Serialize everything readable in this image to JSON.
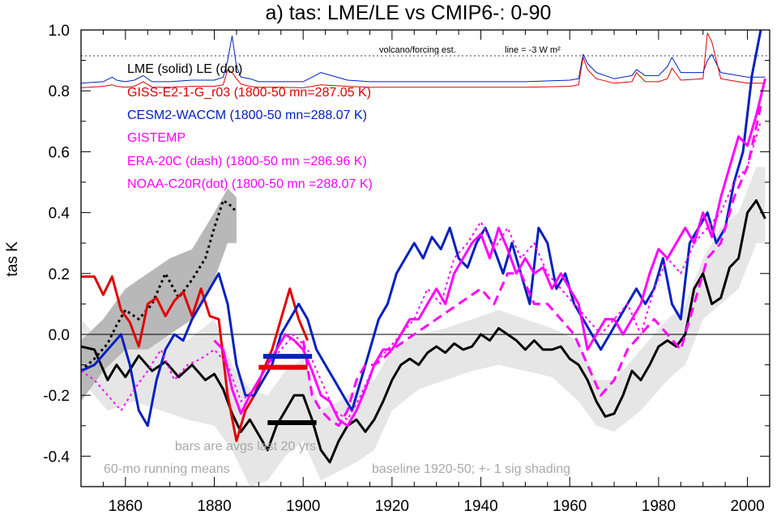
{
  "chart_data": {
    "type": "line",
    "title": "a) tas: LME/LE vs CMIP6-: 0-90",
    "ylabel": "tas K",
    "xlabel": "",
    "xlim": [
      1850,
      2005
    ],
    "ylim": [
      -0.5,
      1.0
    ],
    "x_ticks": [
      1860,
      1880,
      1900,
      1920,
      1940,
      1960,
      1980,
      2000
    ],
    "x_tick_labels": [
      "1860",
      "1880",
      "1900",
      "1920",
      "1940",
      "1960",
      "1980",
      "2000"
    ],
    "y_ticks": [
      -0.4,
      -0.2,
      0.0,
      0.2,
      0.4,
      0.6,
      0.8,
      1.0
    ],
    "y_tick_labels": [
      "-0.4",
      "-0.2",
      "0.0",
      "0.2",
      "0.4",
      "0.6",
      "0.8",
      "1.0"
    ],
    "legend": [
      {
        "text": "LME (solid)   LE (dot)",
        "color": "#000000"
      },
      {
        "text": "GISS-E2-1-G_r03 (1800-50 mn=287.05 K)",
        "color": "#e00000"
      },
      {
        "text": "CESM2-WACCM (1800-50 mn=288.07 K)",
        "color": "#0020c0"
      },
      {
        "text": "GISTEMP",
        "color": "#ff00ff"
      },
      {
        "text": "ERA-20C (dash) (1800-50 mn =286.96 K)",
        "color": "#ff00ff"
      },
      {
        "text": "NOAA-C20R(dot) (1800-50 mn =288.07 K)",
        "color": "#ff00ff"
      }
    ],
    "annotations": {
      "volcano_label": "volcano/forcing est.",
      "forcing_line_label": "line = -3 W m²",
      "bars_note": "bars are avgs last 20 yrs",
      "running_means": "60-mo running means",
      "baseline_note": "baseline 1920-50; +- 1 sig shading"
    },
    "forcing_reference_y": 0.915,
    "series": [
      {
        "name": "LME",
        "color": "#000000",
        "style": "solid",
        "width": 3,
        "x": [
          1850,
          1853,
          1856,
          1858,
          1860,
          1863,
          1866,
          1869,
          1872,
          1875,
          1878,
          1880,
          1882,
          1884,
          1886,
          1888,
          1890,
          1892,
          1894,
          1896,
          1898,
          1900,
          1902,
          1904,
          1906,
          1908,
          1910,
          1912,
          1914,
          1916,
          1918,
          1920,
          1922,
          1924,
          1926,
          1928,
          1930,
          1932,
          1934,
          1936,
          1938,
          1940,
          1942,
          1944,
          1946,
          1948,
          1950,
          1952,
          1954,
          1956,
          1958,
          1960,
          1962,
          1964,
          1966,
          1968,
          1970,
          1972,
          1974,
          1976,
          1978,
          1980,
          1982,
          1984,
          1986,
          1988,
          1990,
          1992,
          1994,
          1996,
          1998,
          2000,
          2002,
          2004
        ],
        "y": [
          -0.04,
          -0.05,
          -0.15,
          -0.1,
          -0.14,
          -0.07,
          -0.12,
          -0.09,
          -0.14,
          -0.1,
          -0.15,
          -0.13,
          -0.18,
          -0.26,
          -0.32,
          -0.28,
          -0.33,
          -0.38,
          -0.3,
          -0.25,
          -0.2,
          -0.2,
          -0.28,
          -0.38,
          -0.42,
          -0.35,
          -0.3,
          -0.28,
          -0.32,
          -0.28,
          -0.22,
          -0.15,
          -0.1,
          -0.08,
          -0.1,
          -0.06,
          -0.04,
          -0.06,
          -0.03,
          -0.05,
          -0.04,
          0.0,
          -0.02,
          0.02,
          0.0,
          -0.02,
          -0.05,
          -0.02,
          -0.05,
          -0.05,
          -0.04,
          -0.08,
          -0.1,
          -0.15,
          -0.22,
          -0.27,
          -0.26,
          -0.2,
          -0.12,
          -0.15,
          -0.1,
          -0.04,
          -0.02,
          -0.04,
          0.0,
          0.15,
          0.2,
          0.1,
          0.12,
          0.22,
          0.25,
          0.4,
          0.44,
          0.38
        ]
      },
      {
        "name": "LE",
        "color": "#000000",
        "style": "dot",
        "width": 3,
        "x": [
          1850,
          1853,
          1856,
          1858,
          1860,
          1863,
          1866,
          1869,
          1872,
          1875,
          1878,
          1880,
          1882,
          1884,
          1885
        ],
        "y": [
          -0.12,
          -0.08,
          -0.03,
          0.03,
          0.08,
          0.05,
          0.1,
          0.2,
          0.12,
          0.18,
          0.25,
          0.35,
          0.44,
          0.42,
          0.4
        ]
      },
      {
        "name": "GISS-E2-1-G_r03",
        "color": "#e00000",
        "style": "solid",
        "width": 3,
        "x": [
          1850,
          1853,
          1855,
          1857,
          1859,
          1861,
          1863,
          1865,
          1867,
          1869,
          1871,
          1873,
          1875,
          1877,
          1879,
          1881,
          1883,
          1885,
          1887,
          1889,
          1891,
          1893,
          1895,
          1897,
          1899,
          1901
        ],
        "y": [
          0.19,
          0.19,
          0.13,
          0.19,
          0.08,
          0.04,
          -0.04,
          0.1,
          0.12,
          0.06,
          0.11,
          0.14,
          0.06,
          0.15,
          0.06,
          0.05,
          -0.2,
          -0.35,
          -0.25,
          -0.2,
          -0.12,
          -0.05,
          0.05,
          0.15,
          0.05,
          -0.02
        ]
      },
      {
        "name": "CESM2-WACCM",
        "color": "#0020c0",
        "style": "solid",
        "width": 3,
        "x": [
          1850,
          1853,
          1856,
          1859,
          1861,
          1863,
          1865,
          1867,
          1869,
          1871,
          1873,
          1875,
          1877,
          1879,
          1881,
          1883,
          1885,
          1887,
          1889,
          1891,
          1893,
          1895,
          1897,
          1899,
          1901,
          1903,
          1905,
          1907,
          1909,
          1911,
          1913,
          1915,
          1917,
          1919,
          1921,
          1923,
          1925,
          1927,
          1929,
          1931,
          1933,
          1935,
          1937,
          1939,
          1941,
          1943,
          1945,
          1947,
          1949,
          1951,
          1953,
          1955,
          1957,
          1959,
          1961,
          1963,
          1965,
          1967,
          1969,
          1971,
          1973,
          1975,
          1977,
          1979,
          1981,
          1983,
          1985,
          1987,
          1989,
          1991,
          1993,
          1995,
          1997,
          1999,
          2001,
          2003
        ],
        "y": [
          -0.12,
          -0.1,
          -0.05,
          0.0,
          -0.1,
          -0.25,
          -0.3,
          -0.15,
          -0.05,
          0.0,
          -0.02,
          0.05,
          0.1,
          0.15,
          0.2,
          0.1,
          -0.1,
          -0.2,
          -0.2,
          -0.15,
          -0.1,
          0.0,
          0.05,
          0.1,
          0.05,
          -0.05,
          -0.1,
          -0.15,
          -0.2,
          -0.25,
          -0.15,
          -0.05,
          0.05,
          0.1,
          0.2,
          0.25,
          0.3,
          0.25,
          0.32,
          0.28,
          0.35,
          0.25,
          0.22,
          0.3,
          0.35,
          0.28,
          0.2,
          0.3,
          0.2,
          0.1,
          0.35,
          0.3,
          0.15,
          0.2,
          0.1,
          0.05,
          0.0,
          -0.05,
          0.0,
          0.05,
          0.1,
          0.15,
          0.1,
          0.15,
          0.25,
          0.1,
          0.05,
          0.3,
          0.35,
          0.4,
          0.3,
          0.35,
          0.5,
          0.6,
          0.85,
          1.0
        ]
      },
      {
        "name": "GISTEMP",
        "color": "#ff00ff",
        "style": "solid",
        "width": 3,
        "x": [
          1880,
          1882,
          1884,
          1886,
          1888,
          1890,
          1892,
          1894,
          1896,
          1898,
          1900,
          1902,
          1904,
          1906,
          1908,
          1910,
          1912,
          1914,
          1916,
          1918,
          1920,
          1922,
          1924,
          1926,
          1928,
          1930,
          1932,
          1934,
          1936,
          1938,
          1940,
          1942,
          1944,
          1946,
          1948,
          1950,
          1952,
          1954,
          1956,
          1958,
          1960,
          1962,
          1964,
          1966,
          1968,
          1970,
          1972,
          1974,
          1976,
          1978,
          1980,
          1982,
          1984,
          1986,
          1988,
          1990,
          1992,
          1994,
          1996,
          1998,
          2000,
          2002,
          2004
        ],
        "y": [
          -0.02,
          -0.05,
          -0.18,
          -0.26,
          -0.2,
          -0.15,
          -0.1,
          -0.05,
          0.0,
          -0.02,
          -0.05,
          -0.12,
          -0.2,
          -0.22,
          -0.28,
          -0.3,
          -0.25,
          -0.18,
          -0.1,
          -0.05,
          -0.05,
          0.0,
          0.05,
          0.05,
          0.1,
          0.15,
          0.1,
          0.2,
          0.25,
          0.3,
          0.33,
          0.25,
          0.35,
          0.28,
          0.2,
          0.25,
          0.2,
          0.22,
          0.15,
          0.2,
          0.15,
          0.1,
          -0.05,
          0.0,
          0.05,
          0.05,
          0.0,
          0.05,
          0.1,
          0.2,
          0.28,
          0.25,
          0.3,
          0.35,
          0.3,
          0.4,
          0.32,
          0.45,
          0.55,
          0.65,
          0.62,
          0.72,
          0.84
        ]
      },
      {
        "name": "ERA-20C",
        "color": "#ff00ff",
        "style": "dash",
        "width": 3,
        "x": [
          1900,
          1902,
          1904,
          1906,
          1908,
          1910,
          1912,
          1914,
          1916,
          1918,
          1920,
          1925,
          1930,
          1935,
          1940,
          1943,
          1946,
          1949,
          1952,
          1955,
          1958,
          1961,
          1964,
          1967,
          1970,
          1973,
          1976,
          1979,
          1982,
          1985,
          1988,
          1991,
          1994,
          1997,
          2000,
          2003
        ],
        "y": [
          -0.02,
          -0.2,
          -0.25,
          -0.28,
          -0.3,
          -0.25,
          -0.15,
          -0.1,
          -0.1,
          -0.08,
          -0.05,
          0.0,
          0.05,
          0.1,
          0.15,
          0.1,
          0.2,
          0.2,
          0.1,
          0.1,
          0.05,
          0.0,
          -0.1,
          -0.2,
          -0.15,
          -0.05,
          0.0,
          0.05,
          0.0,
          -0.05,
          0.1,
          0.25,
          0.3,
          0.45,
          0.55,
          0.75
        ]
      },
      {
        "name": "NOAA-C20R",
        "color": "#ff00ff",
        "style": "dot",
        "width": 2,
        "x": [
          1850,
          1853,
          1856,
          1859,
          1862,
          1865,
          1868,
          1871,
          1874,
          1877,
          1880,
          1883,
          1886,
          1889,
          1892,
          1895,
          1898,
          1901,
          1904,
          1907,
          1910,
          1913,
          1916,
          1919,
          1922,
          1925,
          1928,
          1931,
          1934,
          1937,
          1940,
          1943,
          1946,
          1949,
          1952,
          1955,
          1958,
          1961,
          1964,
          1967,
          1970,
          1973,
          1976,
          1979,
          1982,
          1985,
          1988,
          1991,
          1994,
          1997,
          2000,
          2003
        ],
        "y": [
          -0.12,
          -0.15,
          -0.2,
          -0.25,
          -0.18,
          -0.12,
          -0.05,
          -0.15,
          -0.1,
          -0.08,
          -0.05,
          -0.1,
          -0.22,
          -0.18,
          -0.1,
          -0.05,
          0.0,
          -0.05,
          -0.15,
          -0.25,
          -0.28,
          -0.2,
          -0.1,
          -0.05,
          0.0,
          0.05,
          0.15,
          0.1,
          0.25,
          0.3,
          0.37,
          0.28,
          0.35,
          0.25,
          0.3,
          0.2,
          0.15,
          0.1,
          0.05,
          0.0,
          0.05,
          0.1,
          0.0,
          0.15,
          0.25,
          0.2,
          0.3,
          0.35,
          0.4,
          0.5,
          0.55,
          0.7
        ]
      }
    ],
    "bands": [
      {
        "name": "LME spread",
        "color": "#e6e6e6",
        "x": [
          1850,
          1856,
          1862,
          1868,
          1874,
          1880,
          1884,
          1888,
          1892,
          1896,
          1900,
          1904,
          1908,
          1912,
          1916,
          1920,
          1926,
          1932,
          1938,
          1944,
          1950,
          1956,
          1962,
          1966,
          1970,
          1976,
          1982,
          1986,
          1990,
          1994,
          1998,
          2002,
          2004
        ],
        "lo": [
          -0.15,
          -0.25,
          -0.22,
          -0.25,
          -0.28,
          -0.3,
          -0.38,
          -0.5,
          -0.48,
          -0.4,
          -0.35,
          -0.48,
          -0.45,
          -0.42,
          -0.38,
          -0.25,
          -0.18,
          -0.15,
          -0.12,
          -0.1,
          -0.12,
          -0.14,
          -0.22,
          -0.3,
          -0.32,
          -0.25,
          -0.15,
          -0.1,
          0.05,
          0.1,
          0.15,
          0.3,
          0.3
        ],
        "hi": [
          0.05,
          -0.05,
          0.02,
          0.0,
          -0.02,
          0.05,
          -0.1,
          -0.18,
          -0.2,
          -0.12,
          -0.08,
          -0.25,
          -0.22,
          -0.18,
          -0.15,
          -0.05,
          0.0,
          0.02,
          0.05,
          0.08,
          0.05,
          0.02,
          -0.02,
          -0.15,
          -0.15,
          -0.05,
          0.05,
          0.1,
          0.25,
          0.35,
          0.4,
          0.55,
          0.55
        ]
      },
      {
        "name": "LE spread",
        "color": "#b8b8b8",
        "x": [
          1850,
          1855,
          1860,
          1865,
          1870,
          1875,
          1880,
          1883,
          1885
        ],
        "lo": [
          -0.22,
          -0.12,
          -0.05,
          -0.05,
          0.0,
          0.05,
          0.18,
          0.3,
          0.3
        ],
        "hi": [
          -0.02,
          0.05,
          0.15,
          0.2,
          0.25,
          0.28,
          0.4,
          0.48,
          0.45
        ]
      }
    ],
    "forcing_series": [
      {
        "name": "LME forcing",
        "color": "#0020c0",
        "x": [
          1850,
          1855,
          1857,
          1858,
          1860,
          1862,
          1864,
          1866,
          1870,
          1875,
          1880,
          1882,
          1883,
          1884,
          1885,
          1886,
          1888,
          1890,
          1895,
          1900,
          1902,
          1904,
          1910,
          1915,
          1920,
          1930,
          1940,
          1950,
          1960,
          1962,
          1963,
          1964,
          1966,
          1970,
          1974,
          1975,
          1977,
          1980,
          1982,
          1983,
          1985,
          1990,
          1991,
          1992,
          1994,
          2000,
          2004
        ],
        "y": [
          0.825,
          0.83,
          0.845,
          0.835,
          0.83,
          0.835,
          0.85,
          0.83,
          0.83,
          0.835,
          0.835,
          0.845,
          0.9,
          0.98,
          0.88,
          0.845,
          0.84,
          0.83,
          0.83,
          0.83,
          0.845,
          0.86,
          0.835,
          0.83,
          0.83,
          0.83,
          0.83,
          0.83,
          0.835,
          0.84,
          0.92,
          0.89,
          0.86,
          0.84,
          0.85,
          0.87,
          0.85,
          0.85,
          0.88,
          0.91,
          0.86,
          0.86,
          0.9,
          0.92,
          0.86,
          0.845,
          0.845
        ]
      },
      {
        "name": "LE forcing",
        "color": "#e00000",
        "x": [
          1850,
          1855,
          1857,
          1858,
          1860,
          1862,
          1864,
          1866,
          1870,
          1875,
          1880,
          1882,
          1883,
          1884,
          1885,
          1886,
          1888,
          1890,
          1895,
          1900,
          1902,
          1904,
          1910,
          1915,
          1920,
          1930,
          1940,
          1950,
          1960,
          1962,
          1963,
          1964,
          1966,
          1970,
          1974,
          1975,
          1977,
          1980,
          1982,
          1983,
          1985,
          1990,
          1991,
          1992,
          1994,
          2000,
          2004
        ],
        "y": [
          0.81,
          0.815,
          0.82,
          0.815,
          0.812,
          0.815,
          0.83,
          0.812,
          0.812,
          0.815,
          0.815,
          0.82,
          0.87,
          0.86,
          0.84,
          0.822,
          0.815,
          0.812,
          0.812,
          0.81,
          0.815,
          0.82,
          0.815,
          0.812,
          0.812,
          0.812,
          0.812,
          0.812,
          0.815,
          0.82,
          0.91,
          0.87,
          0.84,
          0.825,
          0.83,
          0.86,
          0.83,
          0.83,
          0.84,
          0.875,
          0.835,
          0.84,
          0.99,
          0.96,
          0.84,
          0.825,
          0.825
        ]
      }
    ],
    "bars": [
      {
        "color": "#0020c0",
        "x": [
          1891,
          1902
        ],
        "y": -0.072
      },
      {
        "color": "#e00000",
        "x": [
          1890,
          1901
        ],
        "y": -0.108
      },
      {
        "color": "#000000",
        "x": [
          1892,
          1903
        ],
        "y": -0.29
      }
    ]
  }
}
